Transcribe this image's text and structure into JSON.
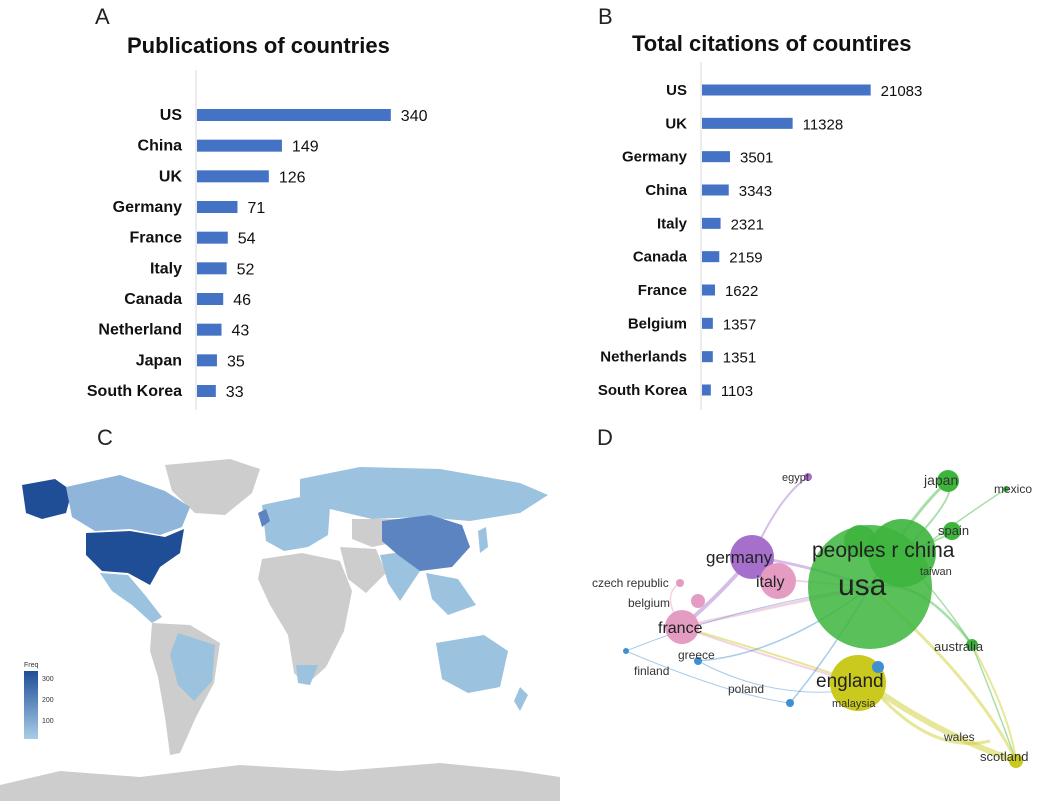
{
  "panels": {
    "a": {
      "letter": "A"
    },
    "b": {
      "letter": "B"
    },
    "c": {
      "letter": "C",
      "legend_title": "Freq",
      "legend_ticks": [
        "300",
        "200",
        "100"
      ]
    },
    "d": {
      "letter": "D"
    }
  },
  "colors": {
    "bar": "#4472C4",
    "map_high": "#1F4E96",
    "map_mid": "#5B84C0",
    "map_low": "#9BC2DE",
    "map_none": "#CDCDCD"
  },
  "chart_data": [
    {
      "type": "bar",
      "orientation": "horizontal",
      "title": "Publications of countries",
      "categories": [
        "US",
        "China",
        "UK",
        "Germany",
        "France",
        "Italy",
        "Canada",
        "Netherland",
        "Japan",
        "South Korea"
      ],
      "values": [
        340,
        149,
        126,
        71,
        54,
        52,
        46,
        43,
        35,
        33
      ],
      "xlim": [
        0,
        400
      ],
      "grid": false
    },
    {
      "type": "bar",
      "orientation": "horizontal",
      "title": "Total citations of countires",
      "categories": [
        "US",
        "UK",
        "Germany",
        "China",
        "Italy",
        "Canada",
        "France",
        "Belgium",
        "Netherlands",
        "South Korea"
      ],
      "values": [
        21083,
        11328,
        3501,
        3343,
        2321,
        2159,
        1622,
        1357,
        1351,
        1103
      ],
      "xlim": [
        0,
        26000
      ],
      "grid": false
    }
  ],
  "map": {
    "countries": [
      {
        "name": "USA",
        "freq": 340
      },
      {
        "name": "China",
        "freq": 149
      },
      {
        "name": "UK",
        "freq": 126
      },
      {
        "name": "Canada",
        "freq": 46
      },
      {
        "name": "Russia",
        "freq": 15
      },
      {
        "name": "Brazil",
        "freq": 20
      },
      {
        "name": "Australia",
        "freq": 25
      },
      {
        "name": "India",
        "freq": 18
      },
      {
        "name": "Greenland",
        "freq": 0
      },
      {
        "name": "Africa",
        "freq": 0
      }
    ]
  },
  "network": {
    "nodes": [
      {
        "label": "usa",
        "cluster": "green"
      },
      {
        "label": "peoples r china",
        "cluster": "green"
      },
      {
        "label": "japan",
        "cluster": "green"
      },
      {
        "label": "mexico",
        "cluster": "green"
      },
      {
        "label": "spain",
        "cluster": "green"
      },
      {
        "label": "taiwan",
        "cluster": "green"
      },
      {
        "label": "australia",
        "cluster": "green"
      },
      {
        "label": "germany",
        "cluster": "purple"
      },
      {
        "label": "egypt",
        "cluster": "purple"
      },
      {
        "label": "italy",
        "cluster": "pink"
      },
      {
        "label": "france",
        "cluster": "pink"
      },
      {
        "label": "czech republic",
        "cluster": "pink"
      },
      {
        "label": "belgium",
        "cluster": "pink"
      },
      {
        "label": "greece",
        "cluster": "blue"
      },
      {
        "label": "finland",
        "cluster": "blue"
      },
      {
        "label": "poland",
        "cluster": "blue"
      },
      {
        "label": "england",
        "cluster": "yellow"
      },
      {
        "label": "malaysia",
        "cluster": "yellow"
      },
      {
        "label": "wales",
        "cluster": "yellow"
      },
      {
        "label": "scotland",
        "cluster": "yellow"
      }
    ],
    "cluster_colors": {
      "green": "#3DB53D",
      "purple": "#A56FCB",
      "pink": "#E59CC3",
      "blue": "#3F8FD1",
      "yellow": "#C9C91E"
    }
  }
}
